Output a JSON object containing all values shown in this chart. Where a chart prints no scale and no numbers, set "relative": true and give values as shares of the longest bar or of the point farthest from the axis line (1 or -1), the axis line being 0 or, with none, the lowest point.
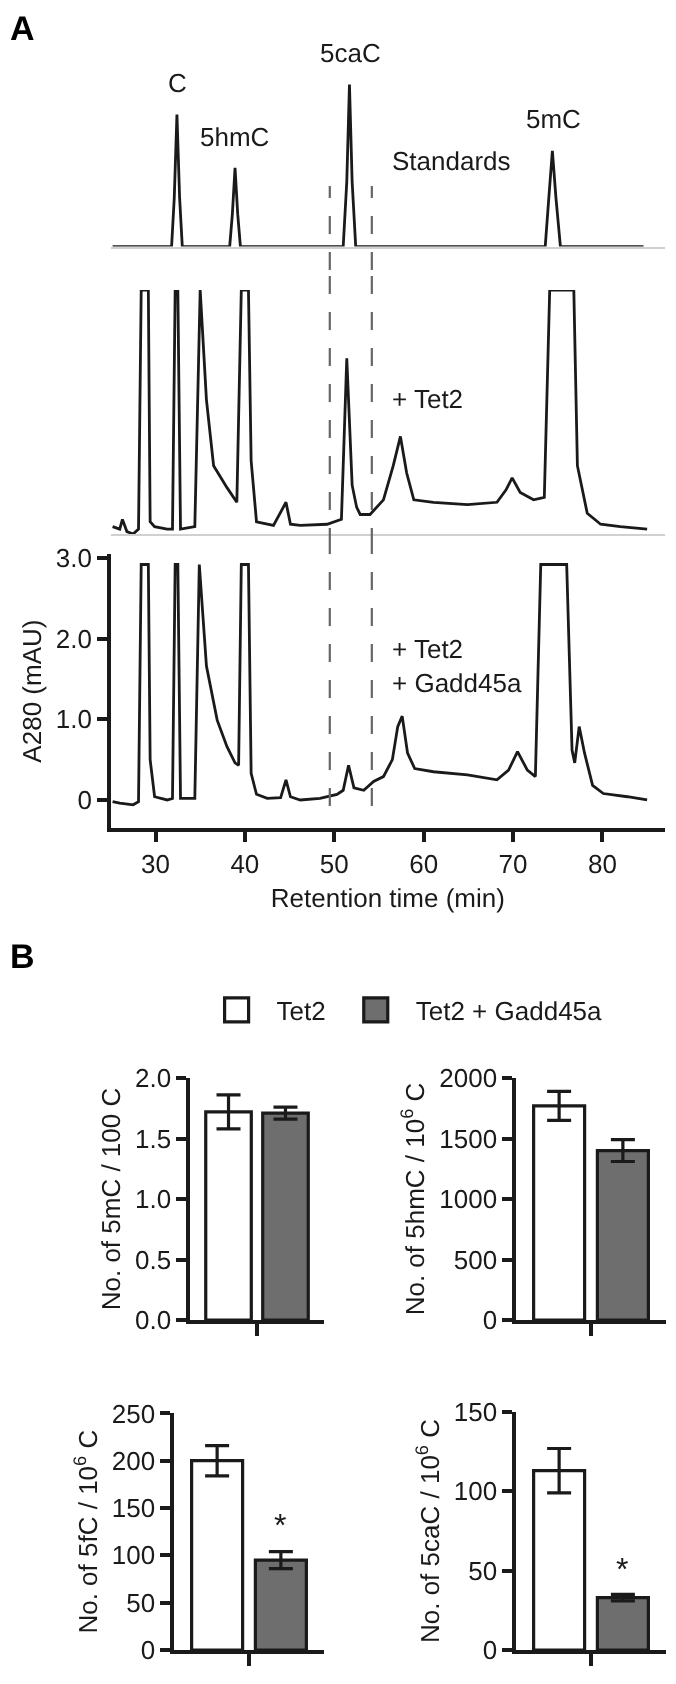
{
  "chart_data": [
    {
      "type": "line",
      "title": "A",
      "relative": true,
      "tick_labels": false,
      "xlim": [
        25,
        87
      ],
      "series": [
        {
          "name": "Standards",
          "color": "#1a1a1a",
          "x": [
            25.2,
            31.8,
            32.1,
            32.4,
            32.7,
            33.0,
            38.3,
            38.6,
            38.9,
            39.2,
            39.5,
            51.0,
            51.4,
            51.7,
            52.0,
            52.4,
            73.6,
            74.0,
            74.4,
            74.8,
            75.3,
            84.6
          ],
          "values": [
            0,
            0,
            0.3,
            0.815,
            0.3,
            0,
            0,
            0.2,
            0.486,
            0.2,
            0,
            0,
            0.4,
            1.0,
            0.4,
            0,
            0,
            0.3,
            0.59,
            0.3,
            0,
            0
          ]
        }
      ],
      "annotations": [
        {
          "text": "C",
          "x": 32.4,
          "y": 0.815
        },
        {
          "text": "5hmC",
          "x": 38.9,
          "y": 0.486
        },
        {
          "text": "5caC",
          "x": 51.7,
          "y": 1.0
        },
        {
          "text": "5mC",
          "x": 74.4,
          "y": 0.59
        }
      ],
      "ref_lines": [
        {
          "axis": "x",
          "value": 49.5,
          "color": "#666666",
          "line_style": "dashed"
        },
        {
          "axis": "x",
          "value": 54.2,
          "color": "#666666",
          "line_style": "dashed"
        }
      ]
    },
    {
      "type": "line",
      "relative": true,
      "tick_labels": false,
      "xlim": [
        25,
        87
      ],
      "series": [
        {
          "name": "+ Tet2",
          "color": "#1a1a1a",
          "x": [
            25.2,
            26.0,
            26.3,
            26.8,
            27.5,
            28.1,
            28.4,
            29.2,
            29.4,
            29.9,
            31.3,
            31.9,
            32.2,
            32.5,
            32.8,
            34.4,
            35.0,
            35.7,
            36.5,
            38.0,
            39.1,
            39.6,
            40.4,
            40.7,
            41.3,
            43.2,
            44.6,
            45.1,
            46.2,
            49.2,
            50.8,
            51.4,
            52.0,
            52.5,
            52.9,
            54.0,
            55.5,
            56.6,
            57.4,
            58.1,
            58.9,
            61.1,
            64.9,
            68.2,
            69.2,
            69.9,
            70.8,
            72.3,
            73.5,
            74.1,
            76.8,
            77.2,
            78.3,
            79.8,
            82.0,
            85.0
          ],
          "values": [
            0.03,
            0.02,
            0.06,
            0.01,
            0,
            0.02,
            1,
            1,
            0.05,
            0.03,
            0.02,
            0.02,
            1,
            1,
            0.02,
            0.03,
            1,
            0.55,
            0.28,
            0.19,
            0.13,
            1,
            1,
            0.3,
            0.05,
            0.035,
            0.13,
            0.04,
            0.035,
            0.04,
            0.06,
            0.72,
            0.2,
            0.11,
            0.08,
            0.08,
            0.14,
            0.28,
            0.4,
            0.25,
            0.14,
            0.13,
            0.12,
            0.13,
            0.18,
            0.23,
            0.17,
            0.14,
            0.15,
            1,
            1,
            0.28,
            0.085,
            0.04,
            0.03,
            0.02
          ]
        }
      ],
      "ref_lines": [
        {
          "axis": "x",
          "value": 49.5,
          "color": "#666666",
          "line_style": "dashed"
        },
        {
          "axis": "x",
          "value": 54.2,
          "color": "#666666",
          "line_style": "dashed"
        }
      ]
    },
    {
      "type": "line",
      "xlabel": "Retention time (min)",
      "ylabel": "A280 (mAU)",
      "xlim": [
        25,
        87
      ],
      "ylim": [
        -0.35,
        3.05
      ],
      "xticks": [
        30,
        40,
        50,
        60,
        70,
        80
      ],
      "yticks": [
        0,
        {
          "value": 1,
          "label": "1.0"
        },
        {
          "value": 2,
          "label": "2.0"
        },
        {
          "value": 3,
          "label": "3.0"
        }
      ],
      "series": [
        {
          "name": "+ Tet2\n+ Gadd45a",
          "color": "#1a1a1a",
          "x": [
            25.2,
            26.0,
            27.5,
            28.1,
            28.4,
            29.2,
            29.4,
            29.9,
            31.3,
            31.9,
            32.2,
            32.5,
            32.8,
            34.4,
            34.9,
            35.7,
            36.9,
            38.0,
            38.9,
            39.3,
            39.6,
            40.4,
            40.7,
            41.3,
            42.5,
            44.0,
            44.6,
            45.1,
            46.2,
            48.4,
            50.3,
            51.0,
            51.6,
            52.2,
            53.3,
            54.4,
            55.5,
            56.5,
            57.1,
            57.6,
            58.2,
            59.0,
            61.1,
            64.9,
            68.2,
            69.5,
            70.5,
            71.6,
            72.5,
            73.1,
            76.0,
            76.6,
            76.9,
            77.4,
            78.0,
            78.9,
            80.1,
            82.8,
            85.0
          ],
          "values": [
            -0.02,
            -0.04,
            -0.06,
            -0.02,
            2.92,
            2.92,
            0.5,
            0.04,
            0,
            0.02,
            2.92,
            2.92,
            0.02,
            0.02,
            2.92,
            1.66,
            0.99,
            0.66,
            0.46,
            0.43,
            2.92,
            2.92,
            0.33,
            0.07,
            0.02,
            0.03,
            0.25,
            0.04,
            0,
            0.02,
            0.07,
            0.12,
            0.43,
            0.15,
            0.12,
            0.23,
            0.29,
            0.5,
            0.91,
            1.04,
            0.58,
            0.39,
            0.35,
            0.31,
            0.25,
            0.37,
            0.6,
            0.37,
            0.29,
            2.92,
            2.92,
            0.62,
            0.46,
            0.91,
            0.58,
            0.18,
            0.08,
            0.04,
            0
          ]
        }
      ],
      "ref_lines": [
        {
          "axis": "x",
          "value": 49.5,
          "color": "#666666",
          "line_style": "dashed"
        },
        {
          "axis": "x",
          "value": 54.2,
          "color": "#666666",
          "line_style": "dashed"
        }
      ]
    },
    {
      "type": "bar",
      "title": "B",
      "ylabel": "No. of 5mC / 100 C",
      "categories": [
        null
      ],
      "legend": "top",
      "ylim": [
        0,
        2.0
      ],
      "yticks": [
        {
          "value": 0,
          "label": "0.0"
        },
        {
          "value": 0.5,
          "label": "0.5"
        },
        {
          "value": 1,
          "label": "1.0"
        },
        {
          "value": 1.5,
          "label": "1.5"
        },
        {
          "value": 2,
          "label": "2.0"
        }
      ],
      "series": [
        {
          "name": "Tet2",
          "color": "#ffffff",
          "values": [
            1.72
          ],
          "errors": [
            0.14
          ]
        },
        {
          "name": "Tet2 + Gadd45a",
          "color": "#6e6e6e",
          "values": [
            1.71
          ],
          "errors": [
            0.05
          ]
        }
      ]
    },
    {
      "type": "bar",
      "ylabel": "No. of 5hmC / 10$^{6}$ C",
      "categories": [
        null
      ],
      "ylim": [
        0,
        2000
      ],
      "yticks": [
        0,
        500,
        1000,
        1500,
        2000
      ],
      "series": [
        {
          "color": "#ffffff",
          "values": [
            1770
          ],
          "errors": [
            120
          ]
        },
        {
          "color": "#6e6e6e",
          "values": [
            1400
          ],
          "errors": [
            90
          ]
        }
      ]
    },
    {
      "type": "bar",
      "ylabel": "No. of 5fC / 10$^{6}$ C",
      "categories": [
        null
      ],
      "ylim": [
        0,
        250
      ],
      "yticks": [
        0,
        50,
        100,
        150,
        200,
        250
      ],
      "series": [
        {
          "color": "#ffffff",
          "values": [
            200
          ],
          "errors": [
            16
          ]
        },
        {
          "color": "#6e6e6e",
          "values": [
            95
          ],
          "errors": [
            9
          ]
        }
      ],
      "annotations": [
        {
          "text": "*",
          "y": 108
        }
      ]
    },
    {
      "type": "bar",
      "ylabel": "No. of 5caC / 10$^{6}$ C",
      "categories": [
        null
      ],
      "ylim": [
        0,
        150
      ],
      "yticks": [
        0,
        50,
        100,
        150
      ],
      "series": [
        {
          "color": "#ffffff",
          "values": [
            113
          ],
          "errors": [
            14
          ]
        },
        {
          "color": "#6e6e6e",
          "values": [
            33
          ],
          "errors": [
            2
          ]
        }
      ],
      "annotations": [
        {
          "text": "*",
          "y": 37
        }
      ]
    }
  ]
}
